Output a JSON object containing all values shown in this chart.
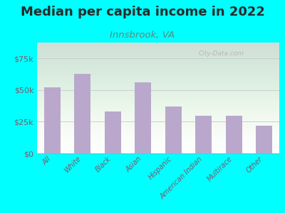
{
  "title": "Median per capita income in 2022",
  "subtitle": "Innsbrook, VA",
  "categories": [
    "All",
    "White",
    "Black",
    "Asian",
    "Hispanic",
    "American Indian",
    "Multirace",
    "Other"
  ],
  "values": [
    52000,
    63000,
    33000,
    56000,
    37000,
    30000,
    29500,
    22000
  ],
  "bar_color": "#b9a8cc",
  "background_outer": "#00FFFF",
  "background_inner_top": "#dff0d8",
  "background_inner_bottom": "#ffffff",
  "title_color": "#2a2a2a",
  "subtitle_color": "#5a8a7a",
  "tick_label_color": "#7a5a6a",
  "watermark": "City-Data.com",
  "ylim": [
    0,
    87500
  ],
  "yticks": [
    0,
    25000,
    50000,
    75000
  ],
  "title_fontsize": 13,
  "subtitle_fontsize": 9.5
}
